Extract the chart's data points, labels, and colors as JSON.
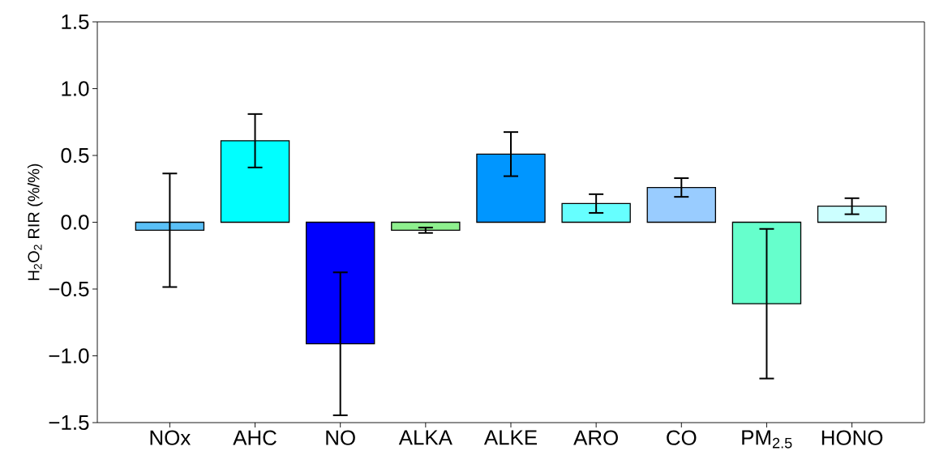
{
  "chart_data": {
    "type": "bar",
    "ylabel": "H$_{2}$O$_{2}$ RIR (%/%)",
    "categories": [
      "NOx",
      "AHC",
      "NO",
      "ALKA",
      "ALKE",
      "ARO",
      "CO",
      "PM$_{2.5}$",
      "HONO"
    ],
    "values": [
      -0.06,
      0.61,
      -0.91,
      -0.06,
      0.51,
      0.14,
      0.26,
      -0.61,
      0.12
    ],
    "errors": [
      0.425,
      0.2,
      0.535,
      0.02,
      0.165,
      0.07,
      0.07,
      0.56,
      0.06
    ],
    "colors": [
      "#5ac0f7",
      "#00ffff",
      "#0000fe",
      "#8ef08e",
      "#0096ff",
      "#66ffff",
      "#99ccff",
      "#66ffcc",
      "#ccffff"
    ],
    "ylim": [
      -1.5,
      1.5
    ],
    "yticks": [
      {
        "value": -1.5,
        "label": "−1.5"
      },
      {
        "value": -1,
        "label": "−1.0"
      },
      {
        "value": -0.5,
        "label": "−0.5"
      },
      {
        "value": 0,
        "label": "0.0"
      },
      {
        "value": 0.5,
        "label": "0.5"
      },
      {
        "value": 1,
        "label": "1.0"
      },
      {
        "value": 1.5,
        "label": "1.5"
      }
    ]
  }
}
